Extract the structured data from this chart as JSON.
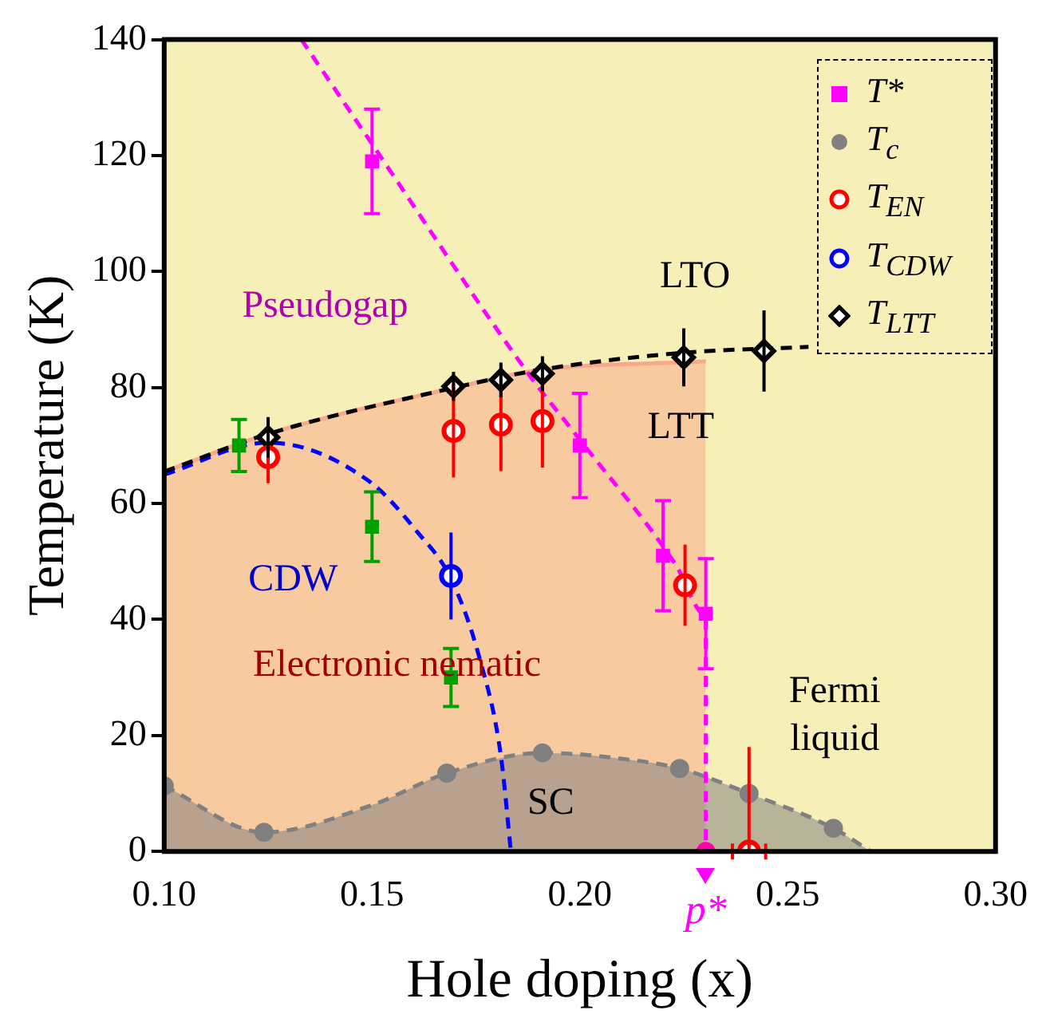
{
  "chart_data": {
    "type": "scatter",
    "xlabel": "Hole doping (x)",
    "ylabel": "Temperature (K)",
    "xlim": [
      0.1,
      0.3
    ],
    "xticks": [
      {
        "value": 0.1,
        "label": "0.10"
      },
      {
        "value": 0.15,
        "label": "0.15"
      },
      {
        "value": 0.2,
        "label": "0.20"
      },
      {
        "value": 0.25,
        "label": "0.25"
      },
      {
        "value": 0.3,
        "label": "0.30"
      }
    ],
    "ylim": [
      0,
      140
    ],
    "yticks": [
      0,
      20,
      40,
      60,
      80,
      100,
      120,
      140
    ],
    "legend": "top right",
    "series": [
      {
        "type": "area",
        "color": "#f9a98a",
        "x": [
          0.1,
          0.125,
          0.17,
          0.19,
          0.2303
        ],
        "values": [
          65.5,
          72,
          80,
          83,
          84.5
        ]
      },
      {
        "type": "area",
        "color": "#808080",
        "line_style": "dashed",
        "x": [
          0.1,
          0.124,
          0.15,
          0.168,
          0.191,
          0.21,
          0.224,
          0.2407,
          0.261,
          0.27
        ],
        "values": [
          11.3,
          3.3,
          8,
          13.5,
          17,
          16,
          14.3,
          10,
          4,
          0
        ]
      },
      {
        "type": "line",
        "color": "#ff00ff",
        "line_style": "dashed",
        "x": [
          0.133,
          0.15,
          0.188,
          0.2,
          0.223,
          0.2303,
          0.2303
        ],
        "values": [
          140,
          122,
          82,
          71,
          49.5,
          40.7,
          0
        ]
      },
      {
        "type": "line",
        "color": "#000000",
        "line_style": "dashed",
        "x": [
          0.1,
          0.125,
          0.17,
          0.19,
          0.225,
          0.255
        ],
        "values": [
          65.5,
          72,
          80,
          83,
          86,
          87
        ]
      },
      {
        "type": "line",
        "color": "#0000ff",
        "line_style": "dashed",
        "x": [
          0.1,
          0.125,
          0.149,
          0.161,
          0.169,
          0.176,
          0.181,
          0.1834
        ],
        "values": [
          65,
          70.5,
          64,
          55,
          47,
          33,
          16.5,
          0
        ]
      },
      {
        "name": "T*",
        "marker": "square",
        "color": "#ff00ff",
        "x": [
          0.15,
          0.2,
          0.22,
          0.2303
        ],
        "values": [
          119,
          70,
          51,
          41
        ],
        "errors": [
          9,
          9,
          9.5,
          9.5
        ]
      },
      {
        "marker": "square",
        "color": "#00a000",
        "x": [
          0.118,
          0.15,
          0.169
        ],
        "values": [
          70,
          56,
          30
        ],
        "errors": [
          4.5,
          6,
          5
        ]
      },
      {
        "name": "T$_{c}$",
        "marker": "circle",
        "color": "#808080",
        "x": [
          0.1,
          0.124,
          0.168,
          0.191,
          0.224,
          0.2407,
          0.261
        ],
        "values": [
          11.3,
          3.3,
          13.5,
          17,
          14.3,
          10,
          4
        ]
      },
      {
        "name": "T$_{EN}$",
        "marker": "circle",
        "color": "#ff0000",
        "x": [
          0.125,
          0.1696,
          0.181,
          0.191,
          0.2253,
          0.2407
        ],
        "values": [
          68,
          72.5,
          73.6,
          74.2,
          45.9,
          0
        ],
        "errors": [
          4.5,
          8,
          8,
          8,
          7,
          [
            0,
            18
          ]
        ],
        "xerrors": [
          null,
          null,
          null,
          null,
          null,
          0.004
        ]
      },
      {
        "name": "T$_{CDW}$",
        "marker": "circle",
        "color": "#0000ff",
        "x": [
          0.169
        ],
        "values": [
          47.5
        ],
        "errors": [
          7.5
        ]
      },
      {
        "name": "T$_{LTT}$",
        "marker": "diamond",
        "color": "#000000",
        "x": [
          0.125,
          0.1696,
          0.181,
          0.191,
          0.225,
          0.2443
        ],
        "values": [
          71.4,
          80.2,
          81.3,
          82.4,
          85.2,
          86.3
        ],
        "errors": [
          3.5,
          2.5,
          3,
          3,
          5,
          7
        ]
      },
      {
        "marker": "circle",
        "color": "#ff00aa",
        "x": [
          0.2303
        ],
        "values": [
          0
        ]
      }
    ],
    "annotations": [
      "Pseudogap",
      "LTO",
      "LTT",
      "CDW",
      "Electronic nematic",
      "Fermi\nliquid",
      "SC",
      {
        "text": "p*",
        "x": 0.2303,
        "y": 0
      }
    ]
  }
}
